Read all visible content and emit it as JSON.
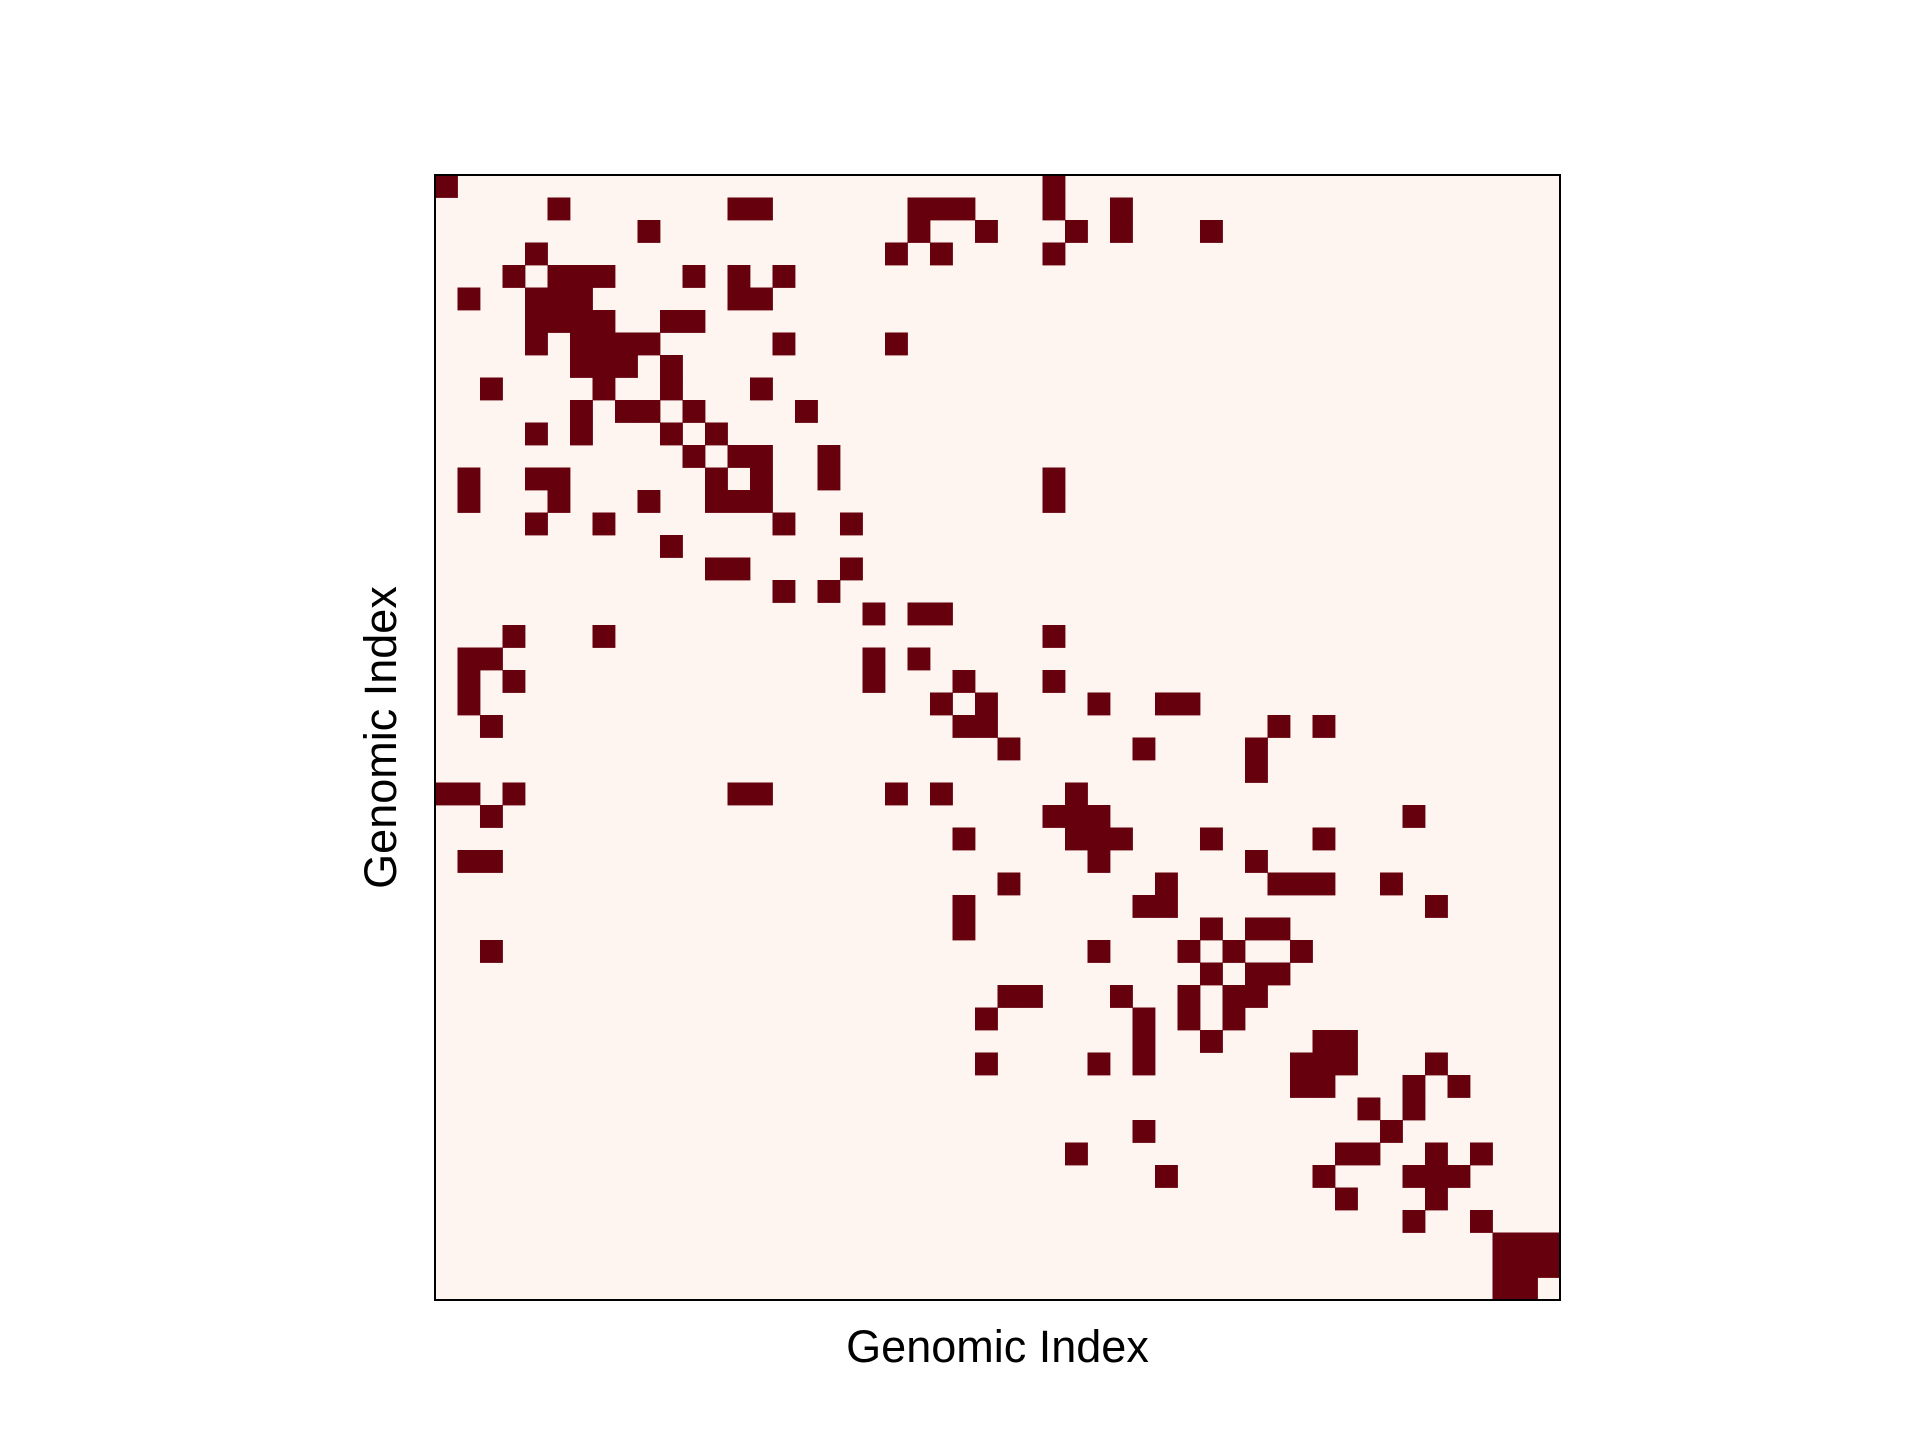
{
  "chart_data": {
    "type": "heatmap",
    "title": "",
    "xlabel": "Genomic Index",
    "ylabel": "Genomic Index",
    "tick_labels": "none",
    "grid": false,
    "legend": "none",
    "matrix_size": [
      50,
      50
    ],
    "values": "binary contact matrix; 1 = filled cell, 0 = empty",
    "colors": {
      "one": "#67000d",
      "zero": "#fff5f0",
      "frame": "#000000"
    },
    "filled_cells": [
      [
        0,
        0
      ],
      [
        0,
        27
      ],
      [
        1,
        5
      ],
      [
        1,
        13
      ],
      [
        1,
        14
      ],
      [
        1,
        21
      ],
      [
        1,
        22
      ],
      [
        1,
        23
      ],
      [
        1,
        27
      ],
      [
        1,
        30
      ],
      [
        2,
        9
      ],
      [
        2,
        21
      ],
      [
        2,
        24
      ],
      [
        2,
        28
      ],
      [
        2,
        30
      ],
      [
        2,
        34
      ],
      [
        3,
        4
      ],
      [
        3,
        20
      ],
      [
        3,
        22
      ],
      [
        3,
        27
      ],
      [
        4,
        3
      ],
      [
        4,
        5
      ],
      [
        4,
        6
      ],
      [
        4,
        7
      ],
      [
        4,
        11
      ],
      [
        4,
        13
      ],
      [
        4,
        15
      ],
      [
        5,
        1
      ],
      [
        5,
        4
      ],
      [
        5,
        5
      ],
      [
        5,
        6
      ],
      [
        5,
        13
      ],
      [
        5,
        14
      ],
      [
        6,
        4
      ],
      [
        6,
        5
      ],
      [
        6,
        6
      ],
      [
        6,
        7
      ],
      [
        6,
        10
      ],
      [
        6,
        11
      ],
      [
        7,
        4
      ],
      [
        7,
        6
      ],
      [
        7,
        7
      ],
      [
        7,
        8
      ],
      [
        7,
        9
      ],
      [
        7,
        15
      ],
      [
        7,
        20
      ],
      [
        8,
        6
      ],
      [
        8,
        7
      ],
      [
        8,
        8
      ],
      [
        8,
        10
      ],
      [
        9,
        2
      ],
      [
        9,
        7
      ],
      [
        9,
        10
      ],
      [
        9,
        14
      ],
      [
        10,
        6
      ],
      [
        10,
        8
      ],
      [
        10,
        9
      ],
      [
        10,
        11
      ],
      [
        10,
        16
      ],
      [
        11,
        4
      ],
      [
        11,
        6
      ],
      [
        11,
        10
      ],
      [
        11,
        12
      ],
      [
        12,
        11
      ],
      [
        12,
        13
      ],
      [
        12,
        14
      ],
      [
        12,
        17
      ],
      [
        13,
        1
      ],
      [
        13,
        4
      ],
      [
        13,
        5
      ],
      [
        13,
        12
      ],
      [
        13,
        14
      ],
      [
        13,
        17
      ],
      [
        13,
        27
      ],
      [
        14,
        1
      ],
      [
        14,
        5
      ],
      [
        14,
        9
      ],
      [
        14,
        12
      ],
      [
        14,
        13
      ],
      [
        14,
        14
      ],
      [
        14,
        27
      ],
      [
        15,
        4
      ],
      [
        15,
        7
      ],
      [
        15,
        15
      ],
      [
        15,
        18
      ],
      [
        16,
        10
      ],
      [
        17,
        12
      ],
      [
        17,
        13
      ],
      [
        17,
        18
      ],
      [
        18,
        15
      ],
      [
        18,
        17
      ],
      [
        19,
        19
      ],
      [
        19,
        21
      ],
      [
        19,
        22
      ],
      [
        20,
        3
      ],
      [
        20,
        7
      ],
      [
        20,
        27
      ],
      [
        21,
        1
      ],
      [
        21,
        2
      ],
      [
        21,
        19
      ],
      [
        21,
        21
      ],
      [
        22,
        1
      ],
      [
        22,
        3
      ],
      [
        22,
        19
      ],
      [
        22,
        23
      ],
      [
        22,
        27
      ],
      [
        23,
        1
      ],
      [
        23,
        22
      ],
      [
        23,
        24
      ],
      [
        23,
        29
      ],
      [
        23,
        32
      ],
      [
        23,
        33
      ],
      [
        24,
        2
      ],
      [
        24,
        23
      ],
      [
        24,
        24
      ],
      [
        24,
        37
      ],
      [
        24,
        39
      ],
      [
        25,
        25
      ],
      [
        25,
        31
      ],
      [
        25,
        36
      ],
      [
        26,
        36
      ],
      [
        27,
        0
      ],
      [
        27,
        1
      ],
      [
        27,
        3
      ],
      [
        27,
        13
      ],
      [
        27,
        14
      ],
      [
        27,
        20
      ],
      [
        27,
        22
      ],
      [
        27,
        28
      ],
      [
        28,
        2
      ],
      [
        28,
        27
      ],
      [
        28,
        28
      ],
      [
        28,
        29
      ],
      [
        28,
        43
      ],
      [
        29,
        23
      ],
      [
        29,
        28
      ],
      [
        29,
        29
      ],
      [
        29,
        30
      ],
      [
        29,
        34
      ],
      [
        29,
        39
      ],
      [
        30,
        1
      ],
      [
        30,
        2
      ],
      [
        30,
        29
      ],
      [
        30,
        36
      ],
      [
        31,
        25
      ],
      [
        31,
        32
      ],
      [
        31,
        37
      ],
      [
        31,
        38
      ],
      [
        31,
        39
      ],
      [
        31,
        42
      ],
      [
        32,
        23
      ],
      [
        32,
        31
      ],
      [
        32,
        32
      ],
      [
        32,
        44
      ],
      [
        33,
        23
      ],
      [
        33,
        34
      ],
      [
        33,
        36
      ],
      [
        33,
        37
      ],
      [
        34,
        2
      ],
      [
        34,
        29
      ],
      [
        34,
        33
      ],
      [
        34,
        35
      ],
      [
        34,
        38
      ],
      [
        35,
        34
      ],
      [
        35,
        36
      ],
      [
        35,
        37
      ],
      [
        36,
        25
      ],
      [
        36,
        26
      ],
      [
        36,
        30
      ],
      [
        36,
        33
      ],
      [
        36,
        35
      ],
      [
        36,
        36
      ],
      [
        37,
        24
      ],
      [
        37,
        31
      ],
      [
        37,
        33
      ],
      [
        37,
        35
      ],
      [
        38,
        31
      ],
      [
        38,
        34
      ],
      [
        38,
        39
      ],
      [
        38,
        40
      ],
      [
        39,
        24
      ],
      [
        39,
        29
      ],
      [
        39,
        31
      ],
      [
        39,
        38
      ],
      [
        39,
        39
      ],
      [
        39,
        40
      ],
      [
        39,
        44
      ],
      [
        40,
        38
      ],
      [
        40,
        39
      ],
      [
        40,
        43
      ],
      [
        40,
        45
      ],
      [
        41,
        41
      ],
      [
        41,
        43
      ],
      [
        42,
        31
      ],
      [
        42,
        42
      ],
      [
        43,
        28
      ],
      [
        43,
        40
      ],
      [
        43,
        41
      ],
      [
        43,
        44
      ],
      [
        43,
        46
      ],
      [
        44,
        32
      ],
      [
        44,
        39
      ],
      [
        44,
        43
      ],
      [
        44,
        44
      ],
      [
        44,
        45
      ],
      [
        45,
        40
      ],
      [
        45,
        44
      ],
      [
        46,
        43
      ],
      [
        46,
        46
      ],
      [
        47,
        47
      ],
      [
        47,
        48
      ],
      [
        47,
        49
      ],
      [
        48,
        47
      ],
      [
        48,
        48
      ],
      [
        48,
        49
      ],
      [
        49,
        47
      ],
      [
        49,
        48
      ]
    ]
  }
}
